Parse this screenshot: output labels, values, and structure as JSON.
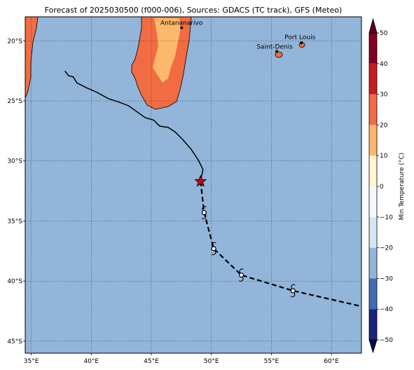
{
  "title": "Forecast of 2025030500 (f000-006), Sources: GDACS (TC track), GFS (Meteo)",
  "map": {
    "lon_range": [
      34.5,
      62.5
    ],
    "lat_range": [
      -46.0,
      -18.0
    ],
    "lon_ticks": [
      35,
      40,
      45,
      50,
      55,
      60
    ],
    "lon_tick_labels": [
      "35°E",
      "40°E",
      "45°E",
      "50°E",
      "55°E",
      "60°E"
    ],
    "lat_ticks": [
      -20,
      -25,
      -30,
      -35,
      -40,
      -45
    ],
    "lat_tick_labels": [
      "20°S",
      "25°S",
      "30°S",
      "35°S",
      "40°S",
      "45°S"
    ],
    "grid": true,
    "ocean_color": "#92b5d9"
  },
  "places": [
    {
      "name": "Antananarivo",
      "lon": 47.52,
      "lat": -18.91
    },
    {
      "name": "Port Louis",
      "lon": 57.5,
      "lat": -20.16
    },
    {
      "name": "Saint-Denis",
      "lon": 55.45,
      "lat": -20.88
    }
  ],
  "track_past": [
    [
      37.8,
      -22.5
    ],
    [
      38.1,
      -22.9
    ],
    [
      38.5,
      -23.0
    ],
    [
      38.8,
      -23.5
    ],
    [
      39.6,
      -23.9
    ],
    [
      40.5,
      -24.3
    ],
    [
      41.4,
      -24.8
    ],
    [
      42.3,
      -25.1
    ],
    [
      43.1,
      -25.4
    ],
    [
      43.8,
      -25.9
    ],
    [
      44.5,
      -26.4
    ],
    [
      45.2,
      -26.6
    ],
    [
      45.7,
      -27.1
    ],
    [
      46.4,
      -27.2
    ],
    [
      47.0,
      -27.6
    ],
    [
      47.6,
      -28.2
    ],
    [
      48.3,
      -29.0
    ],
    [
      48.9,
      -29.9
    ],
    [
      49.3,
      -30.7
    ],
    [
      49.1,
      -31.7
    ]
  ],
  "current_position": {
    "lon": 49.1,
    "lat": -31.7,
    "color": "#e00000"
  },
  "track_forecast": [
    [
      49.1,
      -31.7
    ],
    [
      49.4,
      -34.3
    ],
    [
      50.2,
      -37.3
    ],
    [
      52.5,
      -39.5
    ],
    [
      56.8,
      -40.8
    ],
    [
      62.5,
      -42.1
    ]
  ],
  "forecast_points": [
    {
      "lon": 49.4,
      "lat": -34.3
    },
    {
      "lon": 50.2,
      "lat": -37.3
    },
    {
      "lon": 52.5,
      "lat": -39.5
    },
    {
      "lon": 56.8,
      "lat": -40.8
    }
  ],
  "colorbar": {
    "label": "Min Temperature (°C)",
    "min": -50,
    "max": 50,
    "ticks": [
      50,
      40,
      30,
      20,
      10,
      0,
      -10,
      -20,
      -30,
      -40,
      -50
    ],
    "tick_labels": [
      "50",
      "40",
      "30",
      "20",
      "10",
      "0",
      "−10",
      "−20",
      "−30",
      "−40",
      "−50"
    ],
    "levels": [
      {
        "from": 40,
        "to": 50,
        "color": "#800026"
      },
      {
        "from": 30,
        "to": 40,
        "color": "#c81c20"
      },
      {
        "from": 20,
        "to": 30,
        "color": "#f26c43"
      },
      {
        "from": 10,
        "to": 20,
        "color": "#fcb86c"
      },
      {
        "from": 0,
        "to": 10,
        "color": "#fff3d4"
      },
      {
        "from": -10,
        "to": 0,
        "color": "#f4f9ff"
      },
      {
        "from": -20,
        "to": -10,
        "color": "#d4e6f4"
      },
      {
        "from": -30,
        "to": -20,
        "color": "#92b5d9"
      },
      {
        "from": -40,
        "to": -30,
        "color": "#3e6db3"
      },
      {
        "from": -50,
        "to": -40,
        "color": "#1a237e"
      }
    ],
    "under_color": "#0c0c4a",
    "over_color": "#5e0019"
  },
  "land_colors": {
    "warm": "#f26c43",
    "hot": "#fcb86c"
  }
}
